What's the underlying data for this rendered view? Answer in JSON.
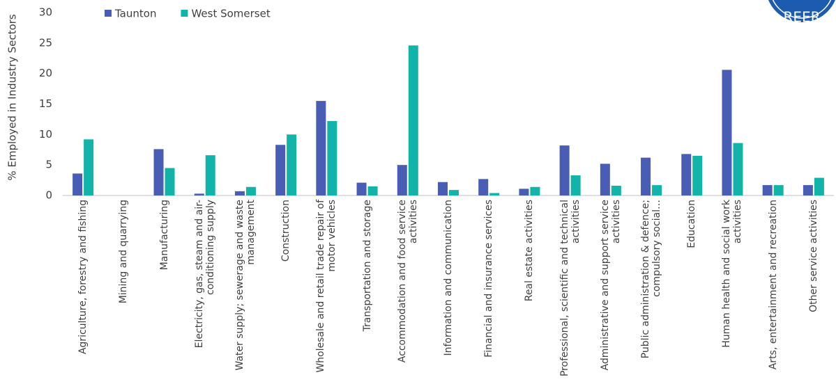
{
  "chart_data": {
    "type": "bar",
    "y_label": "% Employed in Industry Sectors",
    "logo_text": "REER",
    "categories": [
      "Agriculture, forestry and fishing",
      "Mining and quarrying",
      "Manufacturing",
      "Electricity, gas, steam and air-conditioning supply",
      "Water supply; sewerage and waste management",
      "Construction",
      "Wholesale and retail trade repair of motor vehicles",
      "Transportation and storage",
      "Accommodation and food service activities",
      "Information and communication",
      "Financial and insurance services",
      "Real estate activities",
      "Professional, scientific and technical activities",
      "Administrative and support service activities",
      "Public administration & defence; compulsory social…",
      "Education",
      "Human health and social work activities",
      "Arts, entertainment and recreation",
      "Other service activities"
    ],
    "series": [
      {
        "name": "Taunton",
        "color": "#4a5db4",
        "values": [
          3.6,
          0,
          7.6,
          0.3,
          0.7,
          8.3,
          15.5,
          2.1,
          5.0,
          2.2,
          2.7,
          1.1,
          8.2,
          5.2,
          6.2,
          6.8,
          20.6,
          1.7,
          1.7
        ]
      },
      {
        "name": "West Somerset",
        "color": "#12b3a8",
        "values": [
          9.2,
          0,
          4.5,
          6.6,
          1.4,
          10.0,
          12.2,
          1.5,
          24.6,
          0.9,
          0.4,
          1.4,
          3.3,
          1.6,
          1.7,
          6.5,
          8.6,
          1.7,
          2.9
        ]
      }
    ],
    "ylim": [
      0,
      30
    ],
    "yticks": [
      0,
      5,
      10,
      15,
      20,
      25,
      30
    ],
    "grid": false,
    "legend": "top-left"
  }
}
